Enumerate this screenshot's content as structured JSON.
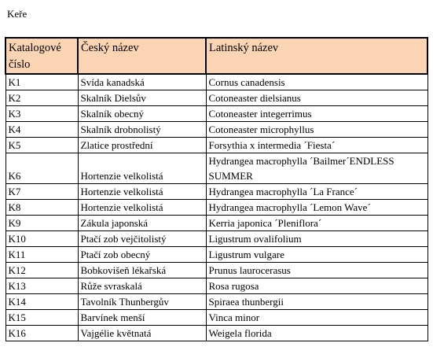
{
  "heading": "Keře",
  "table": {
    "columns": [
      "Katalogové číslo",
      "Český název",
      "Latinský název"
    ],
    "rows": [
      [
        "K1",
        "Svída kanadská",
        "Cornus canadensis"
      ],
      [
        "K2",
        "Skalník Dielsův",
        "Cotoneaster dielsianus"
      ],
      [
        "K3",
        "Skalník obecný",
        "Cotoneaster integerrimus"
      ],
      [
        "K4",
        "Skalník drobnolistý",
        "Cotoneaster microphyllus"
      ],
      [
        "K5",
        "Zlatice prostřední",
        "Forsythia x intermedia ´Fiesta´"
      ],
      [
        "K6",
        "Hortenzie velkolistá",
        "Hydrangea macrophylla ´Bailmer´ENDLESS SUMMER"
      ],
      [
        "K7",
        "Hortenzie velkolistá",
        "Hydrangea macrophylla ´La France´"
      ],
      [
        "K8",
        "Hortenzie velkolistá",
        "Hydrangea macrophylla ´Lemon Wave´"
      ],
      [
        "K9",
        "Zákula japonská",
        "Kerria japonica ´Pleniflora´"
      ],
      [
        "K10",
        "Ptačí zob vejčitolistý",
        "Ligustrum ovalifolium"
      ],
      [
        "K11",
        "Ptačí zob obecný",
        "Ligustrum vulgare"
      ],
      [
        "K12",
        "Bobkovišeň lékařská",
        "Prunus laurocerasus"
      ],
      [
        "K13",
        "Růže svraskalá",
        "Rosa rugosa"
      ],
      [
        "K14",
        "Tavolník Thunbergův",
        "Spiraea thunbergii"
      ],
      [
        "K15",
        "Barvínek menší",
        "Vinca minor"
      ],
      [
        "K16",
        "Vajgélie květnatá",
        "Weigela florida"
      ]
    ]
  },
  "colors": {
    "header_background": "#fbd4b4",
    "border": "#000000"
  }
}
